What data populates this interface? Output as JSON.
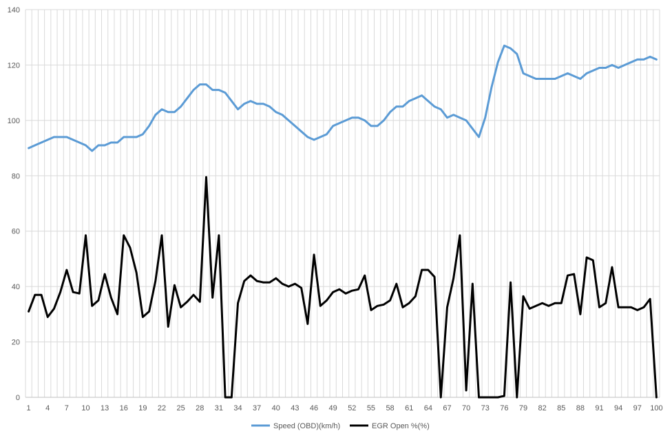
{
  "chart_data": {
    "type": "line",
    "title": "",
    "xlabel": "",
    "ylabel": "",
    "x": [
      1,
      2,
      3,
      4,
      5,
      6,
      7,
      8,
      9,
      10,
      11,
      12,
      13,
      14,
      15,
      16,
      17,
      18,
      19,
      20,
      21,
      22,
      23,
      24,
      25,
      26,
      27,
      28,
      29,
      30,
      31,
      32,
      33,
      34,
      35,
      36,
      37,
      38,
      39,
      40,
      41,
      42,
      43,
      44,
      45,
      46,
      47,
      48,
      49,
      50,
      51,
      52,
      53,
      54,
      55,
      56,
      57,
      58,
      59,
      60,
      61,
      62,
      63,
      64,
      65,
      66,
      67,
      68,
      69,
      70,
      71,
      72,
      73,
      74,
      75,
      76,
      77,
      78,
      79,
      80,
      81,
      82,
      83,
      84,
      85,
      86,
      87,
      88,
      89,
      90,
      91,
      92,
      93,
      94,
      95,
      96,
      97,
      98,
      99,
      100
    ],
    "x_tick_labels": [
      "1",
      "4",
      "7",
      "10",
      "13",
      "16",
      "19",
      "22",
      "25",
      "28",
      "31",
      "34",
      "37",
      "40",
      "43",
      "46",
      "49",
      "52",
      "55",
      "58",
      "61",
      "64",
      "67",
      "70",
      "73",
      "76",
      "79",
      "82",
      "85",
      "88",
      "91",
      "94",
      "97",
      "100"
    ],
    "ylim": [
      0,
      140
    ],
    "y_ticks": [
      "0",
      "20",
      "40",
      "60",
      "80",
      "100",
      "120",
      "140"
    ],
    "grid": "vertical-and-horizontal",
    "legend_position": "bottom",
    "series": [
      {
        "name": "Speed (OBD)(km/h)",
        "color": "#5b9bd5",
        "values": [
          90,
          91,
          92,
          93,
          94,
          94,
          94,
          93,
          92,
          91,
          89,
          91,
          91,
          92,
          92,
          94,
          94,
          94,
          95,
          98,
          102,
          104,
          103,
          103,
          105,
          108,
          111,
          113,
          113,
          111,
          111,
          110,
          107,
          104,
          106,
          107,
          106,
          106,
          105,
          103,
          102,
          100,
          98,
          96,
          94,
          93,
          94,
          95,
          98,
          99,
          100,
          101,
          101,
          100,
          98,
          98,
          100,
          103,
          105,
          105,
          107,
          108,
          109,
          107,
          105,
          104,
          101,
          102,
          101,
          100,
          97,
          94,
          101,
          112,
          121,
          127,
          126,
          124,
          117,
          116,
          115,
          115,
          115,
          115,
          116,
          117,
          116,
          115,
          117,
          118,
          119,
          119,
          120,
          119,
          120,
          121,
          122,
          122,
          123,
          122
        ]
      },
      {
        "name": "EGR Open %(%)",
        "color": "#000000",
        "values": [
          31,
          37,
          37,
          29,
          32,
          38,
          46,
          38,
          37.5,
          58.5,
          33,
          35,
          44.5,
          36,
          30,
          58.5,
          54,
          45,
          29,
          31,
          42,
          58.5,
          25.5,
          40.5,
          32.5,
          34.5,
          37,
          34.5,
          79.5,
          36,
          58.5,
          0,
          0,
          34,
          42,
          44,
          42,
          41.5,
          41.5,
          43,
          41,
          40,
          41,
          39.5,
          26.5,
          51.5,
          33,
          35,
          38,
          39,
          37.5,
          38.5,
          39,
          44,
          31.5,
          33,
          33.5,
          35,
          41,
          32.5,
          34,
          36.5,
          46,
          46,
          43.5,
          0,
          32.5,
          43,
          58.5,
          2.5,
          41,
          0,
          0,
          0,
          0,
          0.5,
          41.5,
          0,
          36.5,
          32,
          33,
          34,
          33,
          34,
          34,
          44,
          44.5,
          30,
          50.5,
          49.5,
          32.5,
          34,
          47,
          32.5,
          32.5,
          32.5,
          31.5,
          32.5,
          35.5,
          0
        ]
      }
    ]
  }
}
